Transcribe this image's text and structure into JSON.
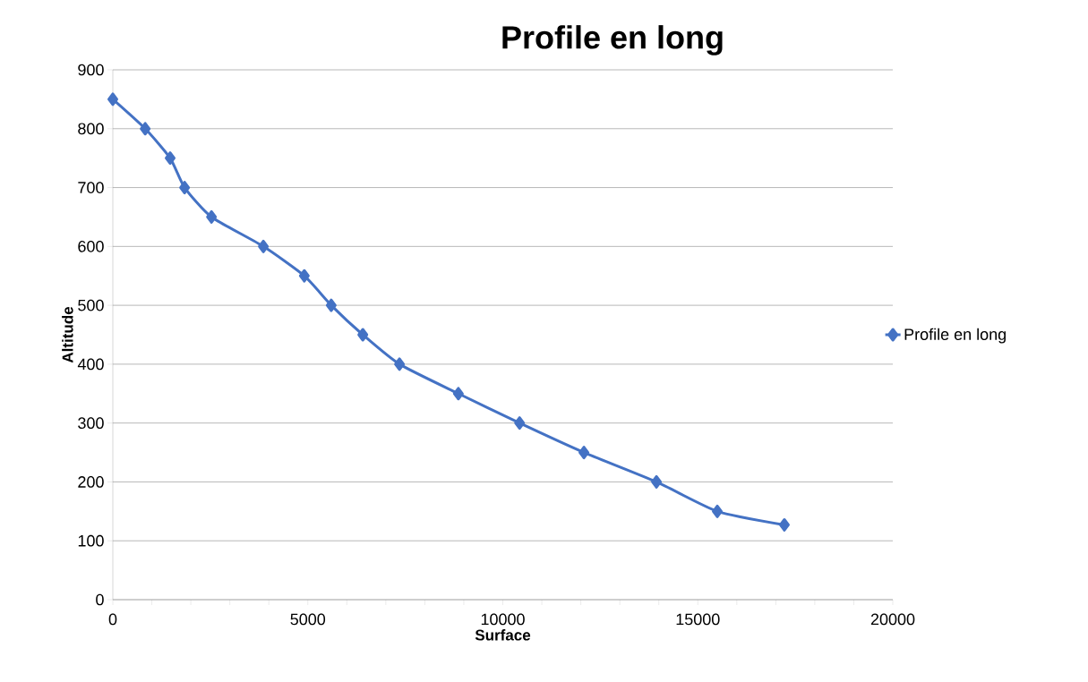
{
  "chart_data": {
    "type": "line",
    "title": "Profile en long",
    "xlabel": "Surface",
    "ylabel": "Altitude",
    "series": [
      {
        "name": "Profile en long",
        "color": "#4472c4",
        "x": [
          0,
          830,
          1470,
          1840,
          2530,
          3860,
          4910,
          5600,
          6410,
          7350,
          8860,
          10430,
          12080,
          13940,
          15500,
          17220
        ],
        "values": [
          850,
          800,
          750,
          700,
          650,
          600,
          550,
          500,
          450,
          400,
          350,
          300,
          250,
          200,
          150,
          127
        ]
      }
    ],
    "xlim": [
      0,
      20000
    ],
    "xticks": [
      0,
      {
        "value": 1000,
        "label": null
      },
      {
        "value": 2000,
        "label": null
      },
      {
        "value": 3000,
        "label": null
      },
      {
        "value": 4000,
        "label": null
      },
      5000,
      {
        "value": 6000,
        "label": null
      },
      {
        "value": 7000,
        "label": null
      },
      {
        "value": 8000,
        "label": null
      },
      {
        "value": 9000,
        "label": null
      },
      10000,
      {
        "value": 11000,
        "label": null
      },
      {
        "value": 12000,
        "label": null
      },
      {
        "value": 13000,
        "label": null
      },
      {
        "value": 14000,
        "label": null
      },
      15000,
      {
        "value": 16000,
        "label": null
      },
      {
        "value": 17000,
        "label": null
      },
      {
        "value": 18000,
        "label": null
      },
      {
        "value": 19000,
        "label": null
      },
      20000
    ],
    "ylim": [
      0,
      900
    ],
    "yticks": [
      0,
      100,
      200,
      300,
      400,
      500,
      600,
      700,
      800,
      900
    ],
    "grid": "y",
    "legend": "right",
    "marker": "diamond",
    "line_style": "solid"
  }
}
